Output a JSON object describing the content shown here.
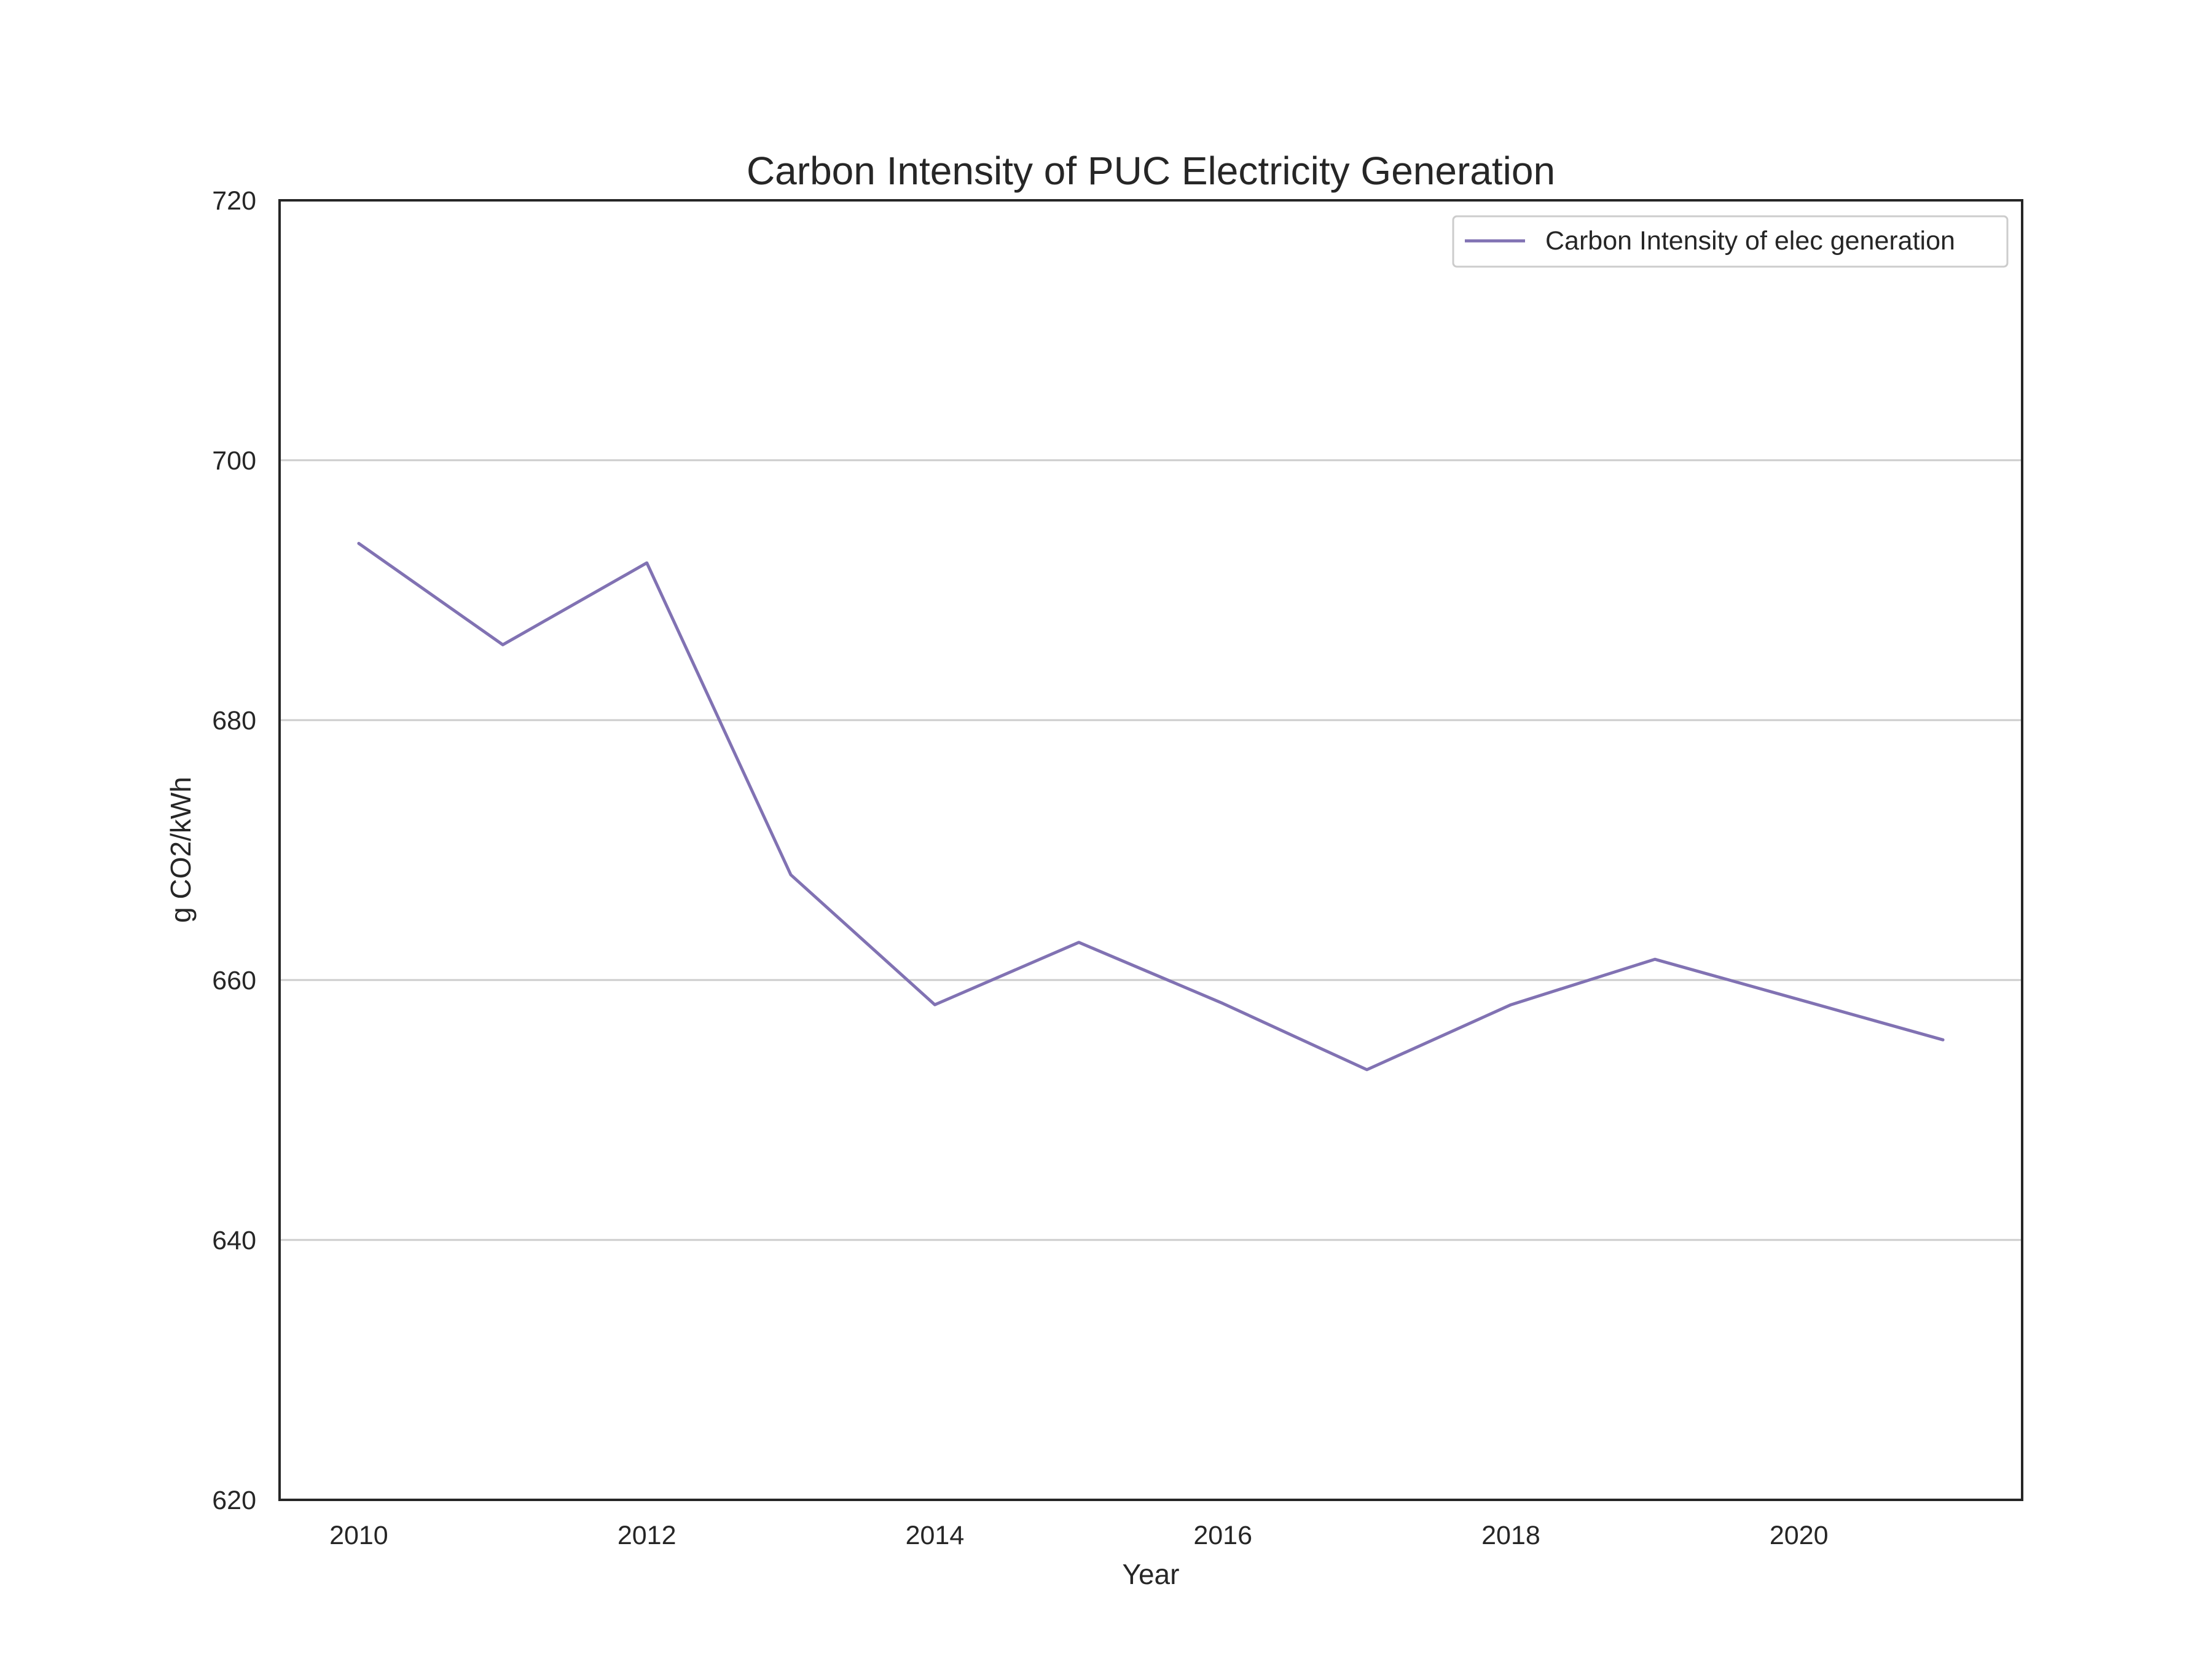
{
  "chart_data": {
    "type": "line",
    "title": "Carbon Intensity of PUC Electricity Generation",
    "xlabel": "Year",
    "ylabel": "g CO2/kWh",
    "x": [
      2010,
      2011,
      2012,
      2013,
      2014,
      2015,
      2016,
      2017,
      2018,
      2019,
      2020,
      2021
    ],
    "series": [
      {
        "name": "Carbon Intensity of elec generation",
        "color": "#8172b3",
        "values": [
          693.6,
          685.8,
          692.1,
          668.1,
          658.1,
          662.9,
          658.2,
          653.1,
          658.1,
          661.6,
          658.5,
          655.4
        ]
      }
    ],
    "xlim": [
      2009.45,
      2021.55
    ],
    "ylim": [
      620,
      720
    ],
    "x_ticks": [
      "2010",
      "2012",
      "2014",
      "2016",
      "2018",
      "2020"
    ],
    "y_ticks": [
      "620",
      "640",
      "660",
      "680",
      "700",
      "720"
    ],
    "grid": "horizontal",
    "legend_position": "top-right",
    "colors": {
      "grid": "#cccccc",
      "frame": "#262626",
      "text": "#262626"
    }
  }
}
